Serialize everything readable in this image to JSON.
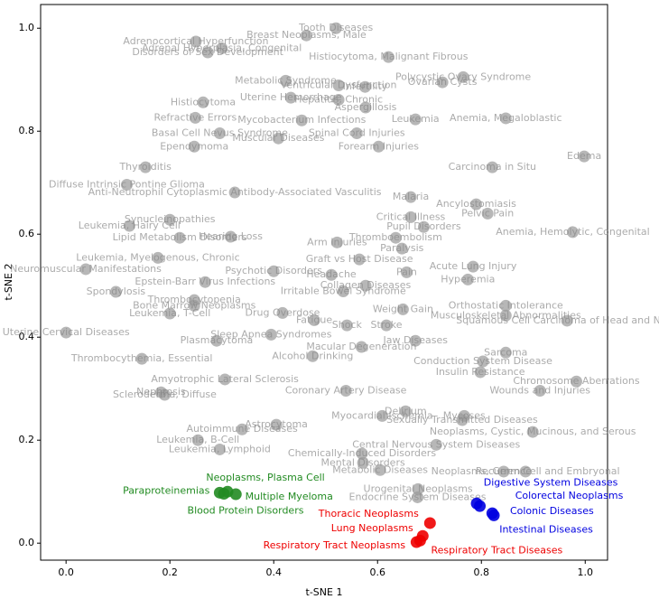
{
  "chart_data": {
    "type": "scatter",
    "xlabel": "t-SNE 1",
    "ylabel": "t-SNE 2",
    "xlim": [
      -0.049,
      1.043
    ],
    "ylim": [
      -0.033,
      1.046
    ],
    "xticks": [
      {
        "value": 0,
        "label": "0.0"
      },
      0.2,
      0.4,
      0.6,
      0.8,
      {
        "value": 1,
        "label": "1.0"
      }
    ],
    "yticks": [
      {
        "value": 0,
        "label": "0.0"
      },
      0.2,
      0.4,
      0.6,
      0.8,
      {
        "value": 1,
        "label": "1.0"
      }
    ],
    "series": [
      {
        "color": "#999999",
        "labels": [
          "Tooth Diseases",
          "Breast Neoplasms, Male",
          "Adrenocortical Hyperfunction",
          "Adrenal Hyperplasia, Congenital",
          "Disorders of Sex Development",
          "Histiocytoma, Malignant Fibrous",
          "Polycystic Ovary Syndrome",
          "Metabolic Syndrome",
          "Ovarian Cysts",
          "Ventricular Dysfunction",
          "Infertility",
          "Uterine Hemorrhage",
          "Histiocytoma",
          "Hepatitis, Chronic",
          "Aspergillosis",
          "Refractive Errors",
          "Mycobacterium Infections",
          "Anemia, Megaloblastic",
          "Leukemia",
          "Basal Cell Nevus Syndrome",
          "Spinal Cord Injuries",
          "Muscular Diseases",
          "Ependymoma",
          "Forearm Injuries",
          "Thyroiditis",
          "Carcinoma in Situ",
          "Edema",
          "Diffuse Intrinsic Pontine Glioma",
          "Anti-Neutrophil Cytoplasmic Antibody-Associated Vasculitis",
          "Malaria",
          "Ancylostomiasis",
          "Pelvic Pain",
          "Synucleinopathies",
          "Critical Illness",
          "Leukemia, Hairy Cell",
          "Pupil Disorders",
          "Anemia, Hemolytic, Congenital",
          "Hearing Loss",
          "Lipid Metabolism Disorders",
          "Thromboembolism",
          "Arm Injuries",
          "Paralysis",
          "Leukemia, Myelogenous, Chronic",
          "Graft vs Host Disease",
          "Acute Lung Injury",
          "Neuromuscular Manifestations",
          "Psychotic Disorders",
          "Headache",
          "Pain",
          "Hyperemia",
          "Epstein-Barr Virus Infections",
          "Spondylosis",
          "Collagen Diseases",
          "Irritable Bowel Syndrome",
          "Thrombocytopenia",
          "Orthostatic Intolerance",
          "Bone Marrow Neoplasms",
          "Drug Overdose",
          "Weight Gain",
          "Leukemia, T-Cell",
          "Musculoskeletal Abnormalities",
          "Squamous Cell Carcinoma of Head and Neck",
          "Fatigue",
          "Shock",
          "Stroke",
          "Uterine Cervical Diseases",
          "Sleep Apnea Syndromes",
          "Plasmacytoma",
          "Jaw Diseases",
          "Macular Degeneration",
          "Sarcoma",
          "Thrombocythemia, Essential",
          "Alcohol Drinking",
          "Insulin Resistance",
          "Conduction System Disease",
          "Chromosome Aberrations",
          "Amyotrophic Lateral Sclerosis",
          "Wounds and Injuries",
          "Nephrosis",
          "Coronary Artery Disease",
          "Scleroderma, Diffuse",
          "Myocardial Ischemia",
          "Delirium",
          "Mycoses",
          "Sexually Transmitted Diseases",
          "Astrocytoma",
          "Autoimmune Diseases",
          "Neoplasms, Cystic, Mucinous, and Serous",
          "Central Nervous System Diseases",
          "Leukemia, B-Cell",
          "Leukemia, Lymphoid",
          "Chemically-Induced Disorders",
          "Mental Disorders",
          "Metabolic Diseases",
          "Neoplasms, Germ Cell and Embryonal",
          "Recurrence",
          "Urogenital Neoplasms",
          "Endocrine System Diseases"
        ],
        "x": [
          0.52,
          0.463,
          0.25,
          0.3,
          0.273,
          0.621,
          0.765,
          0.423,
          0.725,
          0.525,
          0.576,
          0.433,
          0.264,
          0.525,
          0.577,
          0.249,
          0.454,
          0.847,
          0.673,
          0.296,
          0.56,
          0.409,
          0.247,
          0.602,
          0.153,
          0.821,
          0.998,
          0.117,
          0.325,
          0.664,
          0.79,
          0.812,
          0.2,
          0.664,
          0.122,
          0.689,
          0.976,
          0.317,
          0.219,
          0.635,
          0.522,
          0.647,
          0.177,
          0.565,
          0.784,
          0.038,
          0.4,
          0.511,
          0.656,
          0.774,
          0.268,
          0.096,
          0.577,
          0.534,
          0.247,
          0.847,
          0.247,
          0.417,
          0.649,
          0.2,
          0.847,
          0.965,
          0.478,
          0.541,
          0.617,
          0.0,
          0.395,
          0.29,
          0.673,
          0.569,
          0.847,
          0.146,
          0.475,
          0.798,
          0.803,
          0.983,
          0.306,
          0.913,
          0.183,
          0.539,
          0.19,
          0.609,
          0.654,
          0.767,
          0.763,
          0.405,
          0.339,
          0.899,
          0.713,
          0.254,
          0.296,
          0.57,
          0.572,
          0.605,
          0.885,
          0.843,
          0.678,
          0.677
        ],
        "values": [
          1.0,
          0.986,
          0.974,
          0.961,
          0.953,
          0.944,
          0.905,
          0.898,
          0.895,
          0.889,
          0.886,
          0.865,
          0.856,
          0.861,
          0.846,
          0.826,
          0.821,
          0.825,
          0.823,
          0.796,
          0.796,
          0.786,
          0.77,
          0.77,
          0.73,
          0.73,
          0.751,
          0.696,
          0.681,
          0.672,
          0.658,
          0.64,
          0.628,
          0.633,
          0.616,
          0.614,
          0.604,
          0.595,
          0.593,
          0.593,
          0.584,
          0.572,
          0.554,
          0.551,
          0.537,
          0.532,
          0.528,
          0.521,
          0.526,
          0.512,
          0.507,
          0.488,
          0.5,
          0.489,
          0.472,
          0.461,
          0.461,
          0.447,
          0.454,
          0.446,
          0.442,
          0.432,
          0.433,
          0.423,
          0.423,
          0.409,
          0.405,
          0.393,
          0.393,
          0.381,
          0.37,
          0.358,
          0.363,
          0.332,
          0.353,
          0.314,
          0.318,
          0.296,
          0.293,
          0.296,
          0.288,
          0.247,
          0.256,
          0.247,
          0.239,
          0.23,
          0.221,
          0.216,
          0.191,
          0.2,
          0.182,
          0.174,
          0.156,
          0.142,
          0.139,
          0.139,
          0.105,
          0.089
        ]
      },
      {
        "color": "#228b22",
        "labels": [
          "Paraproteinemias",
          "Neoplasms, Plasma Cell",
          "Multiple Myeloma",
          "Blood Protein Disorders"
        ],
        "x": [
          0.296,
          0.311,
          0.327,
          0.304
        ],
        "values": [
          0.098,
          0.1,
          0.095,
          0.096
        ]
      },
      {
        "color": "#0000e0",
        "labels": [
          "Digestive System Diseases",
          "Colorectal Neoplasms",
          "Colonic Diseases",
          "Intestinal Diseases"
        ],
        "x": [
          0.791,
          0.797,
          0.821,
          0.824
        ],
        "values": [
          0.077,
          0.072,
          0.058,
          0.054
        ]
      },
      {
        "color": "#ee0000",
        "labels": [
          "Thoracic Neoplasms",
          "Lung Neoplasms",
          "Respiratory Tract Neoplasms",
          "Respiratory Tract Diseases"
        ],
        "x": [
          0.701,
          0.687,
          0.675,
          0.682
        ],
        "values": [
          0.039,
          0.014,
          0.002,
          0.005
        ]
      }
    ]
  }
}
